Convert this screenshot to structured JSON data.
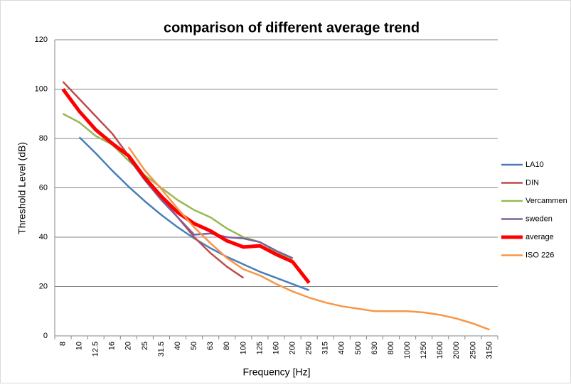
{
  "chart_data": {
    "type": "line",
    "title": "comparison of different average trend",
    "x_label": "Frequency [Hz]",
    "y_label": "Threshold Level (dB)",
    "categories": [
      "8",
      "10",
      "12.5",
      "16",
      "20",
      "25",
      "31.5",
      "40",
      "50",
      "63",
      "80",
      "100",
      "125",
      "160",
      "200",
      "250",
      "315",
      "400",
      "500",
      "630",
      "800",
      "1000",
      "1250",
      "1600",
      "2000",
      "2500",
      "3150"
    ],
    "series": [
      {
        "name": "LA10",
        "color": "#4a7ebb",
        "line_width": 2.5,
        "values": [
          null,
          80.5,
          74,
          67,
          60.5,
          54.5,
          49,
          44,
          39.5,
          35.5,
          32,
          29,
          26,
          23.5,
          21,
          18.5,
          null,
          null,
          null,
          null,
          null,
          null,
          null,
          null,
          null,
          null,
          null
        ]
      },
      {
        "name": "DIN",
        "color": "#be4b48",
        "line_width": 2.5,
        "values": [
          103,
          96,
          89,
          82,
          73,
          64,
          56,
          48,
          40,
          33.5,
          28,
          23.5,
          null,
          null,
          null,
          null,
          null,
          null,
          null,
          null,
          null,
          null,
          null,
          null,
          null,
          null,
          null
        ]
      },
      {
        "name": "Vercammen",
        "color": "#98b954",
        "line_width": 2.5,
        "values": [
          90,
          86.5,
          81,
          77.5,
          71,
          65,
          60,
          55,
          51,
          48,
          43.5,
          40,
          38,
          34,
          31,
          null,
          null,
          null,
          null,
          null,
          null,
          null,
          null,
          null,
          null,
          null,
          null
        ]
      },
      {
        "name": "sweden",
        "color": "#7d60a0",
        "line_width": 2.5,
        "values": [
          null,
          null,
          null,
          null,
          72,
          63,
          55,
          48,
          41,
          41.5,
          40,
          39.5,
          38,
          34.5,
          31.5,
          null,
          null,
          null,
          null,
          null,
          null,
          null,
          null,
          null,
          null,
          null,
          null
        ]
      },
      {
        "name": "average",
        "color": "#ff0000",
        "line_width": 5,
        "values": [
          100,
          91,
          83.5,
          78,
          73,
          64,
          56.5,
          50,
          45.5,
          42.5,
          38.5,
          36,
          36.5,
          33,
          30,
          21.5,
          null,
          null,
          null,
          null,
          null,
          null,
          null,
          null,
          null,
          null,
          null
        ]
      },
      {
        "name": "ISO 226",
        "color": "#f79646",
        "line_width": 2.5,
        "values": [
          null,
          null,
          null,
          null,
          76.5,
          67,
          59.5,
          51.5,
          44,
          37.5,
          31.5,
          27,
          24.5,
          21,
          18,
          15.5,
          13.5,
          12,
          11,
          10,
          10,
          10,
          9.5,
          8.5,
          7,
          5,
          2.5
        ]
      }
    ],
    "ylim": [
      0,
      120
    ],
    "yticks": [
      0,
      20,
      40,
      60,
      80,
      100,
      120
    ],
    "grid": true,
    "legend": "right"
  }
}
